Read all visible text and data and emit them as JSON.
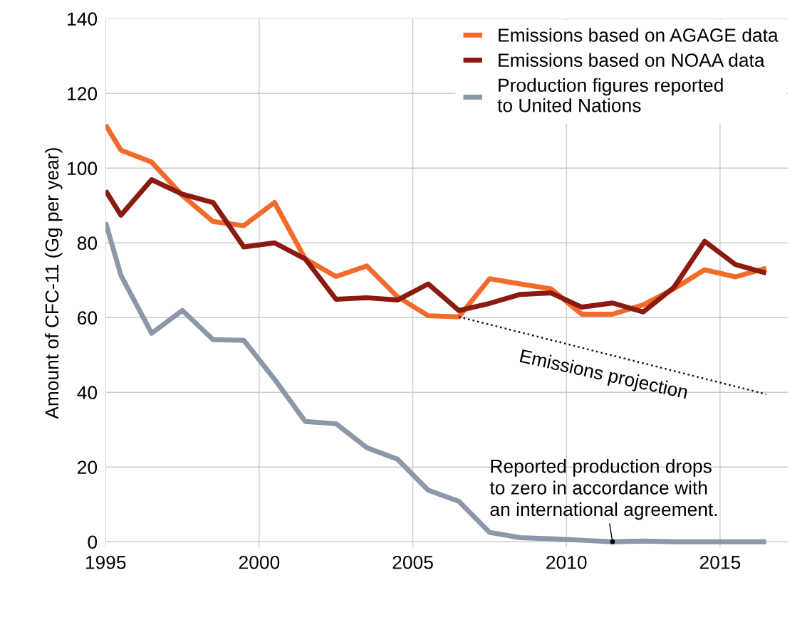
{
  "chart_data": {
    "type": "line",
    "ylabel": "Amount of CFC-11 (Gg per year)",
    "x": [
      1995,
      1995.5,
      1996.5,
      1997.5,
      1998.5,
      1999.5,
      2000.5,
      2001.5,
      2002.5,
      2003.5,
      2004.5,
      2005.5,
      2006.5,
      2007.5,
      2008.5,
      2009.5,
      2010.5,
      2011.5,
      2012.5,
      2013.5,
      2014.5,
      2015.5,
      2016.5
    ],
    "series": [
      {
        "name": "Emissions based on AGAGE data",
        "color": "#f26b2a",
        "values": [
          111.6,
          104.8,
          101.6,
          92.7,
          85.7,
          84.6,
          90.8,
          75.7,
          71,
          73.8,
          65.6,
          60.5,
          60.2,
          70.4,
          69,
          67.7,
          60.9,
          60.9,
          63.4,
          67.7,
          72.8,
          70.9,
          73.2
        ]
      },
      {
        "name": "Emissions based on NOAA data",
        "color": "#8b1a10",
        "values": [
          94,
          87.4,
          96.9,
          93,
          90.8,
          78.9,
          80,
          75.7,
          64.9,
          65.3,
          64.7,
          69,
          61.9,
          63.8,
          66.2,
          66.6,
          62.8,
          63.9,
          61.5,
          68.1,
          80.4,
          74.2,
          71.9
        ]
      },
      {
        "name": "Production figures reported\nto United Nations",
        "color": "#8a98a8",
        "values": [
          85.5,
          71.3,
          55.8,
          61.9,
          54.1,
          53.9,
          43.5,
          32.2,
          31.6,
          25.2,
          22.1,
          13.8,
          10.8,
          2.5,
          1.1,
          0.8,
          0.4,
          0,
          0.2,
          0,
          0,
          0,
          0
        ]
      },
      {
        "color": "#111111",
        "line_style": "dotted",
        "x": [
          2006.5,
          2016.5
        ],
        "values": [
          60.2,
          39.5
        ]
      }
    ],
    "annotations": [
      "Emissions projection",
      {
        "text": "Reported production drops\nto zero in accordance with\nan international agreement.",
        "x": 2011.5,
        "y": 0
      }
    ],
    "xlim": [
      1995,
      2017.2
    ],
    "ylim": [
      -1.5,
      140
    ],
    "xticks": [
      1995,
      2000,
      2005,
      2010,
      2015
    ],
    "yticks": [
      0,
      20,
      40,
      60,
      80,
      100,
      120,
      140
    ],
    "grid": true,
    "legend": "top right",
    "marker": "none",
    "line_style": "solid"
  }
}
